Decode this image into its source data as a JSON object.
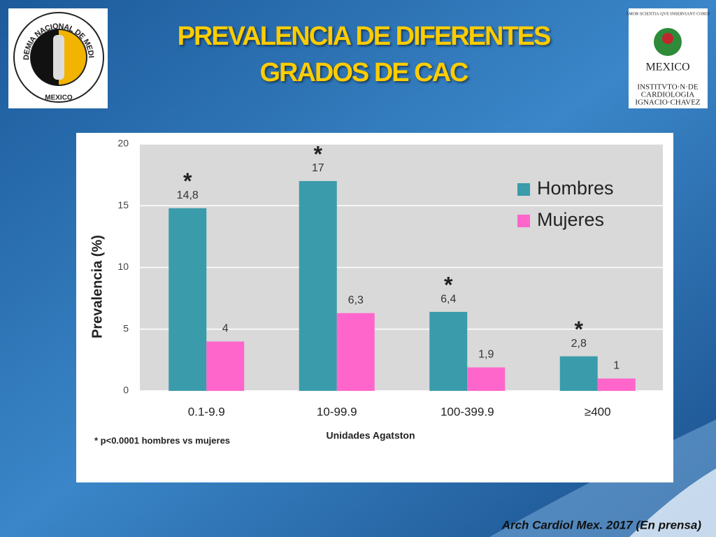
{
  "chart_data": {
    "type": "bar",
    "title": "PREVALENCIA DE DIFERENTES GRADOS DE CAC",
    "categories": [
      "0.1-9.9",
      "10-99.9",
      "100-399.9",
      "≥400"
    ],
    "series": [
      {
        "name": "Hombres",
        "color": "#3a9bab",
        "values": [
          14.8,
          17,
          6.4,
          2.8
        ],
        "value_labels": [
          "14,8",
          "17",
          "6,4",
          "2,8"
        ]
      },
      {
        "name": "Mujeres",
        "color": "#ff66cc",
        "values": [
          4,
          6.3,
          1.9,
          1
        ],
        "value_labels": [
          "4",
          "6,3",
          "1,9",
          "1"
        ]
      }
    ],
    "annotations": [
      "*",
      "*",
      "*",
      "*"
    ],
    "ylim": [
      0,
      20
    ],
    "yticks": [
      0,
      5,
      10,
      15,
      20
    ],
    "grid": true,
    "legend": "upper right",
    "ylabel": "Prevalencia (%)",
    "xlabel": "Unidades Agatston",
    "footnote": "* p<0.0001 hombres vs mujeres"
  },
  "citation": "Arch Cardiol Mex. 2017 (En prensa)",
  "logos": {
    "left": {
      "ring": "ACADEMIA NACIONAL DE MEDICINA",
      "bottom": "MEXICO"
    },
    "right": {
      "motto": "AMOR·SCIENTIA·QVE·INSERVIANT·CORDI",
      "word": "MEXICO",
      "line1": "INSTITVTO·N·DE",
      "line2": "CARDIOLOGIA",
      "line3": "IGNACIO·CHAVEZ"
    }
  }
}
